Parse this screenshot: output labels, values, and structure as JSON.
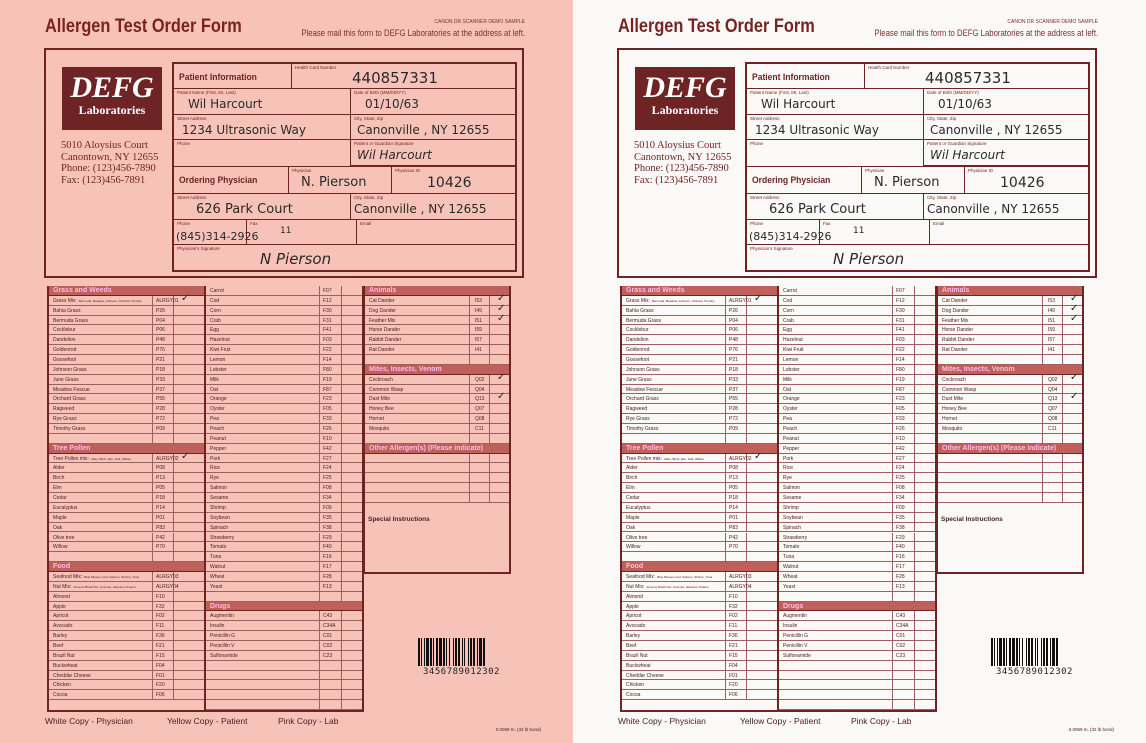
{
  "header": {
    "title": "Allergen Test Order Form",
    "demo_note": "CANON DR SCANNER DEMO SAMPLE",
    "mail_note": "Please mail this form to DEFG Laboratories at the address at left."
  },
  "lab": {
    "logo_main": "DEFG",
    "logo_sub": "Laboratories",
    "address": [
      "5010 Aloysius Court",
      "Canontown, NY 12655",
      "Phone:  (123)456-7890",
      "Fax:  (123)456-7891"
    ]
  },
  "patient": {
    "heading": "Patient Information",
    "health_card_label": "Health Card Number",
    "health_card": "440857331",
    "name_label": "Patient Name (First, MI, Last)",
    "name": "Wil Harcourt",
    "dob_label": "Date of Birth (MM/DD/YY)",
    "dob": "01/10/63",
    "street_label": "Street Address",
    "street": "1234 Ultrasonic Way",
    "city_label": "City, State, Zip",
    "city": "Canonville , NY 12655",
    "phone_label": "Phone",
    "signature_label": "Patient or Guardian Signature",
    "signature": "Wil Harcourt"
  },
  "physician": {
    "heading": "Ordering Physician",
    "name_label": "Physician",
    "name": "N. Pierson",
    "id_label": "Physician ID",
    "id": "10426",
    "street_label": "Street Address",
    "street": "626 Park Court",
    "city_label": "City, State, Zip",
    "city": "Canonville , NY 12655",
    "phone_label": "Phone",
    "phone": "(845)314-2926",
    "fax_label": "Fax",
    "fax": "11",
    "email_label": "Email",
    "signature_label": "Physician's Signature",
    "signature": "N Pierson"
  },
  "sections": {
    "grass": {
      "title": "Grass and Weeds",
      "items": [
        {
          "name": "Grass Mix:",
          "sub": "Bermuda, Meadow, Johnson, Orchard, Timothy",
          "code": "ALRGY01",
          "checked": true
        },
        {
          "name": "Bahia Grass",
          "code": "P26"
        },
        {
          "name": "Bermuda Grass",
          "code": "P04"
        },
        {
          "name": "Cocklebur",
          "code": "P06"
        },
        {
          "name": "Dandelion",
          "code": "P48"
        },
        {
          "name": "Goldenrod",
          "code": "P76"
        },
        {
          "name": "Goosefoot",
          "code": "P21"
        },
        {
          "name": "Johnson Grass",
          "code": "P18"
        },
        {
          "name": "June Grass",
          "code": "P33"
        },
        {
          "name": "Meadow Fescue",
          "code": "P37"
        },
        {
          "name": "Orchard Grass",
          "code": "P55"
        },
        {
          "name": "Ragweed",
          "code": "P28"
        },
        {
          "name": "Rye Grass",
          "code": "P72"
        },
        {
          "name": "Timothy Grass",
          "code": "P09"
        }
      ]
    },
    "tree": {
      "title": "Tree Pollen",
      "items": [
        {
          "name": "Tree Pollen mix:",
          "sub": "Alder, Birch, Elm, Oak, Willow",
          "code": "ALRGY02",
          "checked": true
        },
        {
          "name": "Alder",
          "code": "P08"
        },
        {
          "name": "Birch",
          "code": "P13"
        },
        {
          "name": "Elm",
          "code": "P05"
        },
        {
          "name": "Cedar",
          "code": "P18"
        },
        {
          "name": "Eucalyptus",
          "code": "P14"
        },
        {
          "name": "Maple",
          "code": "P01"
        },
        {
          "name": "Oak",
          "code": "P83"
        },
        {
          "name": "Olive tree",
          "code": "P42"
        },
        {
          "name": "Willow",
          "code": "P70"
        }
      ]
    },
    "food": {
      "title": "Food",
      "items": [
        {
          "name": "Seafood Mix:",
          "sub": "Blue Mussel, Cod, Salmon, Shrimp, Tuna",
          "code": "ALRGY03"
        },
        {
          "name": "Nut Mix:",
          "sub": "Almond, Brazil Nut, Coconut, Hazelnut, Peanut",
          "code": "ALRGY04"
        },
        {
          "name": "Almond",
          "code": "F10"
        },
        {
          "name": "Apple",
          "code": "F32"
        },
        {
          "name": "Apricot",
          "code": "F02"
        },
        {
          "name": "Avocado",
          "code": "F11"
        },
        {
          "name": "Barley",
          "code": "F36"
        },
        {
          "name": "Beef",
          "code": "F21"
        },
        {
          "name": "Brazil Nut",
          "code": "F15"
        },
        {
          "name": "Buckwheat",
          "code": "F04"
        },
        {
          "name": "Cheddar Cheese",
          "code": "F01"
        },
        {
          "name": "Chicken",
          "code": "F20"
        },
        {
          "name": "Cocoa",
          "code": "F06"
        }
      ]
    },
    "food2": {
      "items": [
        {
          "name": "Carrot",
          "code": "F07"
        },
        {
          "name": "Cod",
          "code": "F12"
        },
        {
          "name": "Corn",
          "code": "F30"
        },
        {
          "name": "Crab",
          "code": "F31"
        },
        {
          "name": "Egg",
          "code": "F41"
        },
        {
          "name": "Hazelnut",
          "code": "F03"
        },
        {
          "name": "Kiwi Fruit",
          "code": "F22"
        },
        {
          "name": "Lemon",
          "code": "F14"
        },
        {
          "name": "Lobster",
          "code": "F80"
        },
        {
          "name": "Milk",
          "code": "F19"
        },
        {
          "name": "Oat",
          "code": "F87"
        },
        {
          "name": "Orange",
          "code": "F23"
        },
        {
          "name": "Oyster",
          "code": "F05"
        },
        {
          "name": "Pea",
          "code": "F33"
        },
        {
          "name": "Peach",
          "code": "F26"
        },
        {
          "name": "Peanut",
          "code": "F10"
        },
        {
          "name": "Pepper",
          "code": "F42"
        },
        {
          "name": "Pork",
          "code": "F27"
        },
        {
          "name": "Rice",
          "code": "F24"
        },
        {
          "name": "Rye",
          "code": "F25"
        },
        {
          "name": "Salmon",
          "code": "F08"
        },
        {
          "name": "Sesame",
          "code": "F34"
        },
        {
          "name": "Shrimp",
          "code": "F09"
        },
        {
          "name": "Soybean",
          "code": "F35"
        },
        {
          "name": "Spinach",
          "code": "F38"
        },
        {
          "name": "Strawberry",
          "code": "F29"
        },
        {
          "name": "Tomato",
          "code": "F40"
        },
        {
          "name": "Tuna",
          "code": "F16"
        },
        {
          "name": "Walnut",
          "code": "F17"
        },
        {
          "name": "Wheat",
          "code": "F28"
        },
        {
          "name": "Yeast",
          "code": "F13"
        }
      ]
    },
    "drugs": {
      "title": "Drugs",
      "items": [
        {
          "name": "Augmentin",
          "code": "C43"
        },
        {
          "name": "Insulin",
          "code": "C34A"
        },
        {
          "name": "Penicillin G",
          "code": "C01"
        },
        {
          "name": "Penicillin V",
          "code": "C02"
        },
        {
          "name": "Sulfonamide",
          "code": "C23"
        }
      ]
    },
    "animals": {
      "title": "Animals",
      "items": [
        {
          "name": "Cat Dander",
          "code": "I53",
          "checked": true
        },
        {
          "name": "Dog Dander",
          "code": "I49",
          "checked": true
        },
        {
          "name": "Feather Mix",
          "code": "I51",
          "checked": true
        },
        {
          "name": "Horse Dander",
          "code": "I59"
        },
        {
          "name": "Rabbit Dander",
          "code": "I57"
        },
        {
          "name": "Rat Dander",
          "code": "I41"
        }
      ]
    },
    "mites": {
      "title": "Mites, Insects, Venom",
      "items": [
        {
          "name": "Cockroach",
          "code": "Q02",
          "checked": true
        },
        {
          "name": "Common Wasp",
          "code": "Q04"
        },
        {
          "name": "Dust Mite",
          "code": "Q13",
          "checked": true
        },
        {
          "name": "Honey Bee",
          "code": "Q07"
        },
        {
          "name": "Hornet",
          "code": "Q08"
        },
        {
          "name": "Mosquito",
          "code": "C11"
        }
      ]
    },
    "other": {
      "title": "Other Allergen(s) (Please indicate)"
    },
    "special": {
      "title": "Special Instructions"
    }
  },
  "barcode": "3456789012302",
  "footer": {
    "white": "White Copy - Physician",
    "yellow": "Yellow Copy - Patient",
    "pink": "Pink Copy - Lab",
    "bond": "0.0059 In. (32 lb bond)"
  },
  "check_mark": "✓",
  "colors": {
    "pink_copy": "#f7c3b9",
    "white_copy": "#fbf9f8",
    "brand": "#6e2424",
    "section_header": "#c0605a"
  }
}
